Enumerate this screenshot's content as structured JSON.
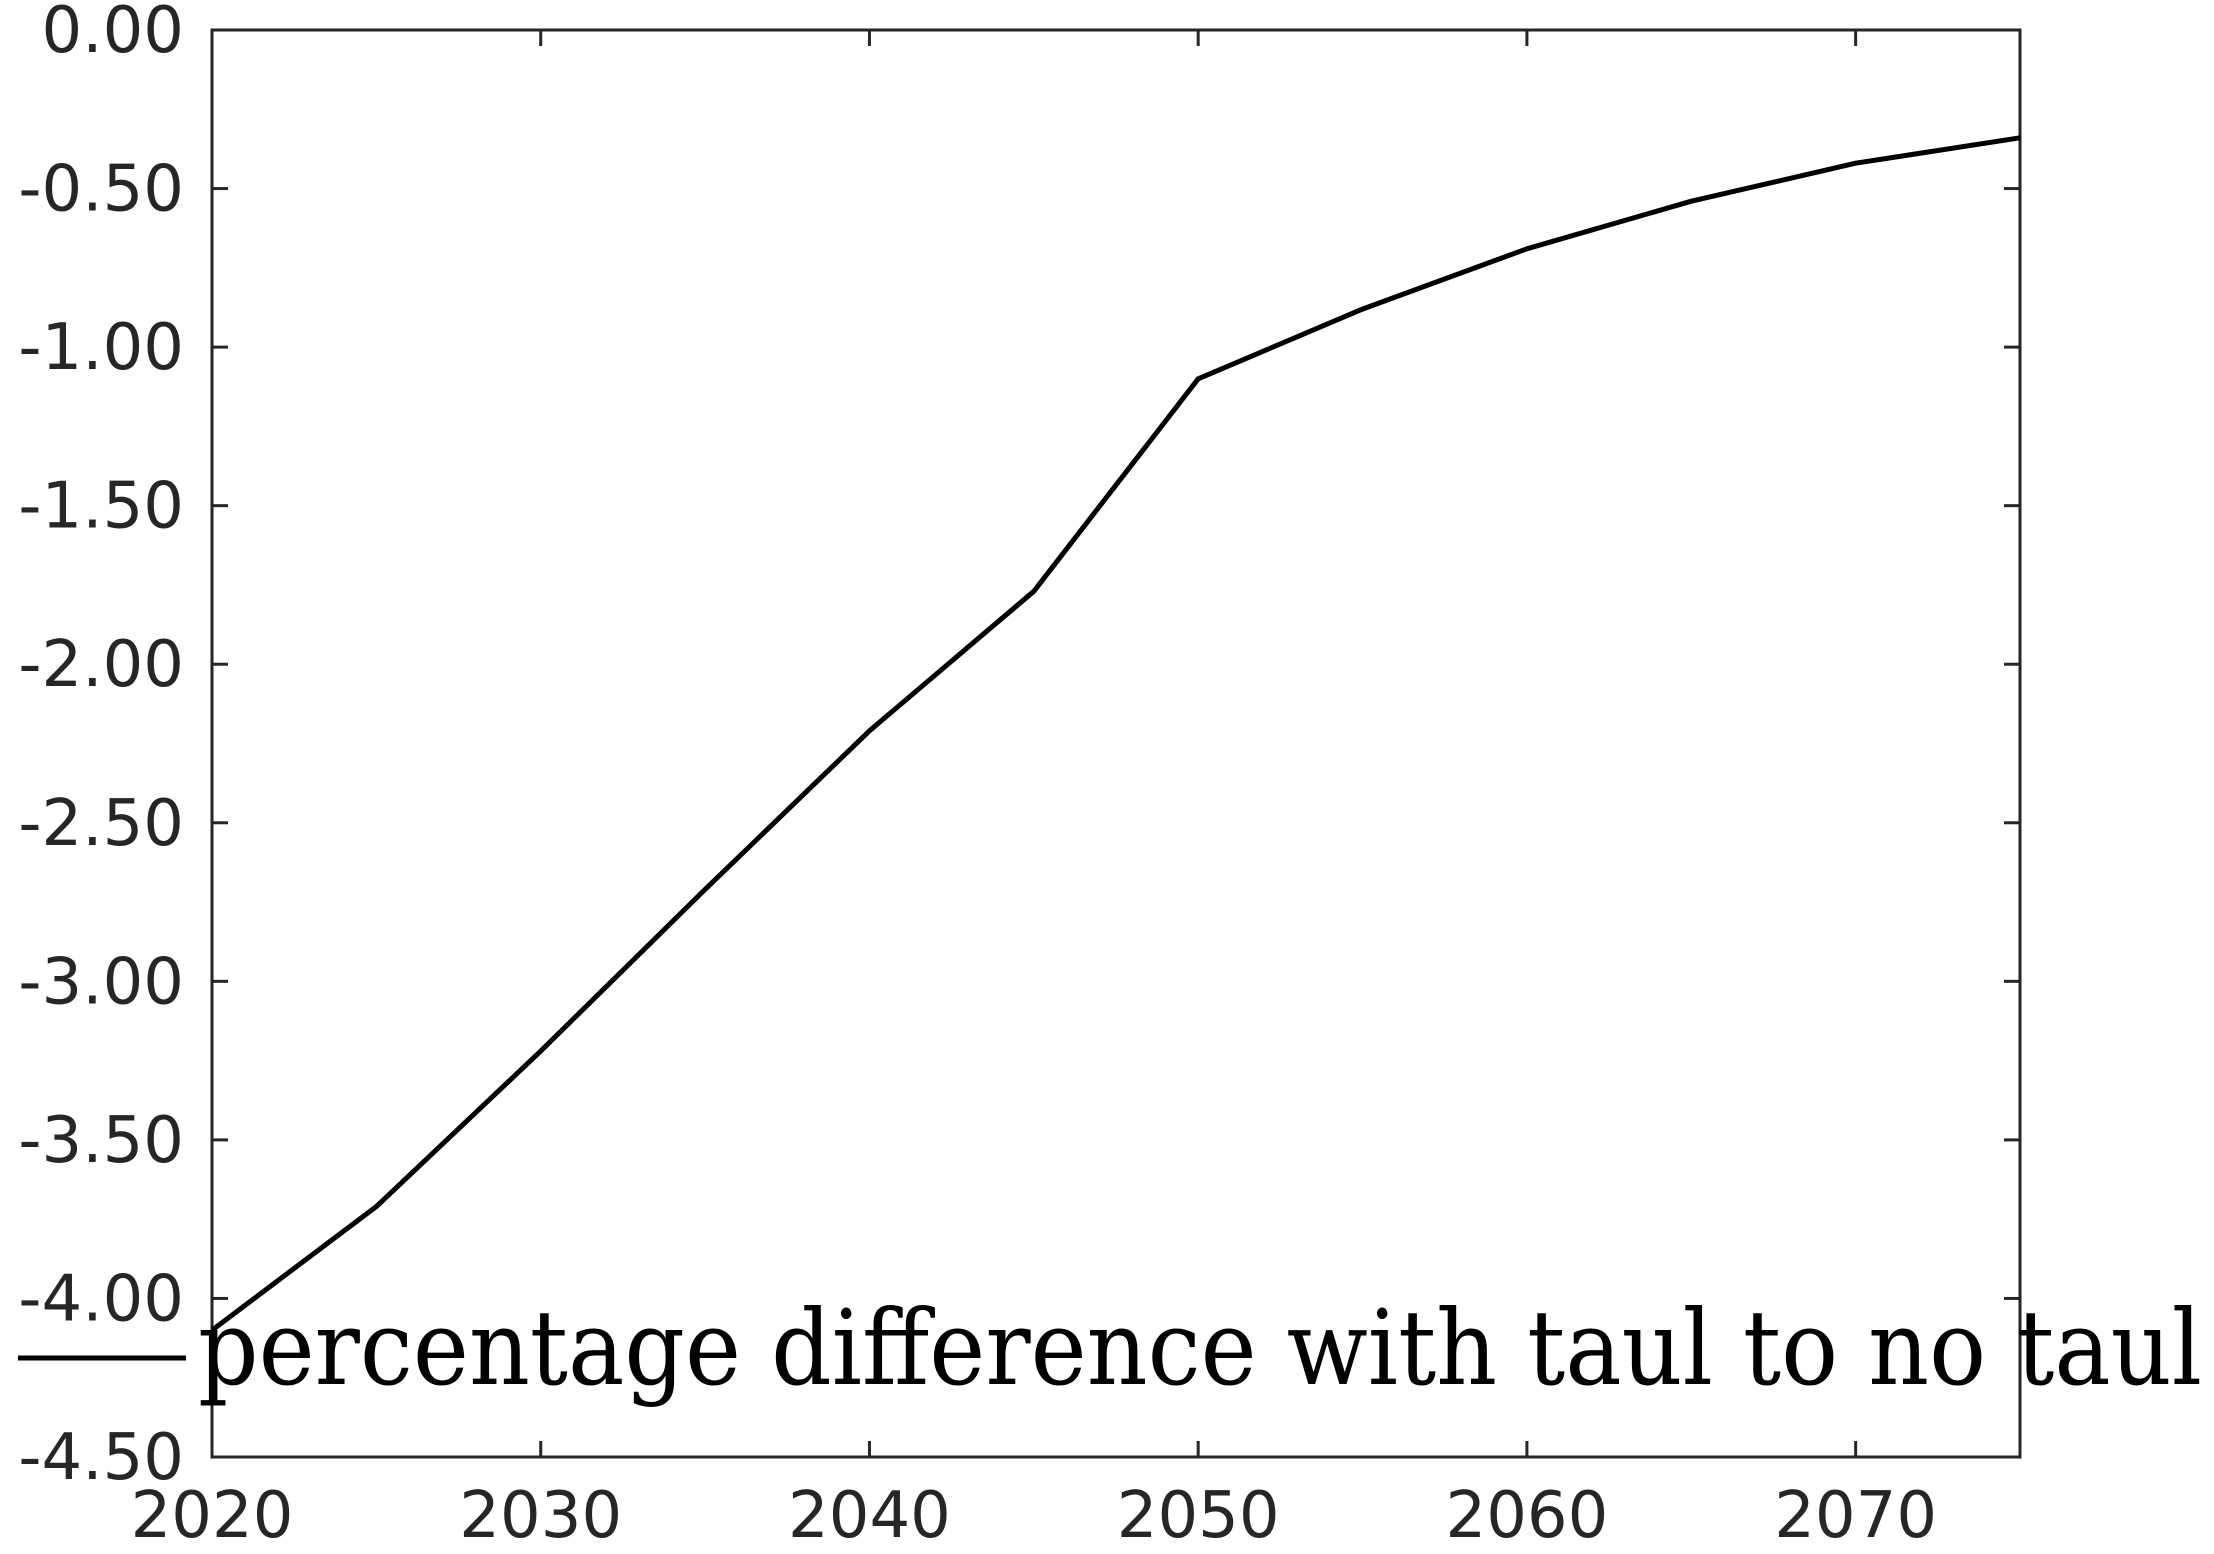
{
  "chart_data": {
    "type": "line",
    "title": "",
    "xlabel": "",
    "ylabel": "",
    "xlim": [
      2020,
      2075
    ],
    "ylim": [
      -4.5,
      0.0
    ],
    "x_ticks": [
      2020,
      2030,
      2040,
      2050,
      2060,
      2070
    ],
    "x_tick_labels": [
      "2020",
      "2030",
      "2040",
      "2050",
      "2060",
      "2070"
    ],
    "y_ticks": [
      0.0,
      -0.5,
      -1.0,
      -1.5,
      -2.0,
      -2.5,
      -3.0,
      -3.5,
      -4.0,
      -4.5
    ],
    "y_tick_labels": [
      "0.00",
      "-0.50",
      "-1.00",
      "-1.50",
      "-2.00",
      "-2.50",
      "-3.00",
      "-3.50",
      "-4.00",
      "-4.50"
    ],
    "grid": false,
    "box": true,
    "legend_position": "bottom-left",
    "series": [
      {
        "name": "percentage difference with taul to no taul",
        "color": "#000000",
        "x": [
          2020,
          2025,
          2030,
          2035,
          2040,
          2045,
          2050,
          2055,
          2060,
          2065,
          2070,
          2075
        ],
        "y": [
          -4.1,
          -3.71,
          -3.22,
          -2.71,
          -2.21,
          -1.77,
          -1.1,
          -0.88,
          -0.69,
          -0.54,
          -0.42,
          -0.34
        ]
      }
    ]
  }
}
